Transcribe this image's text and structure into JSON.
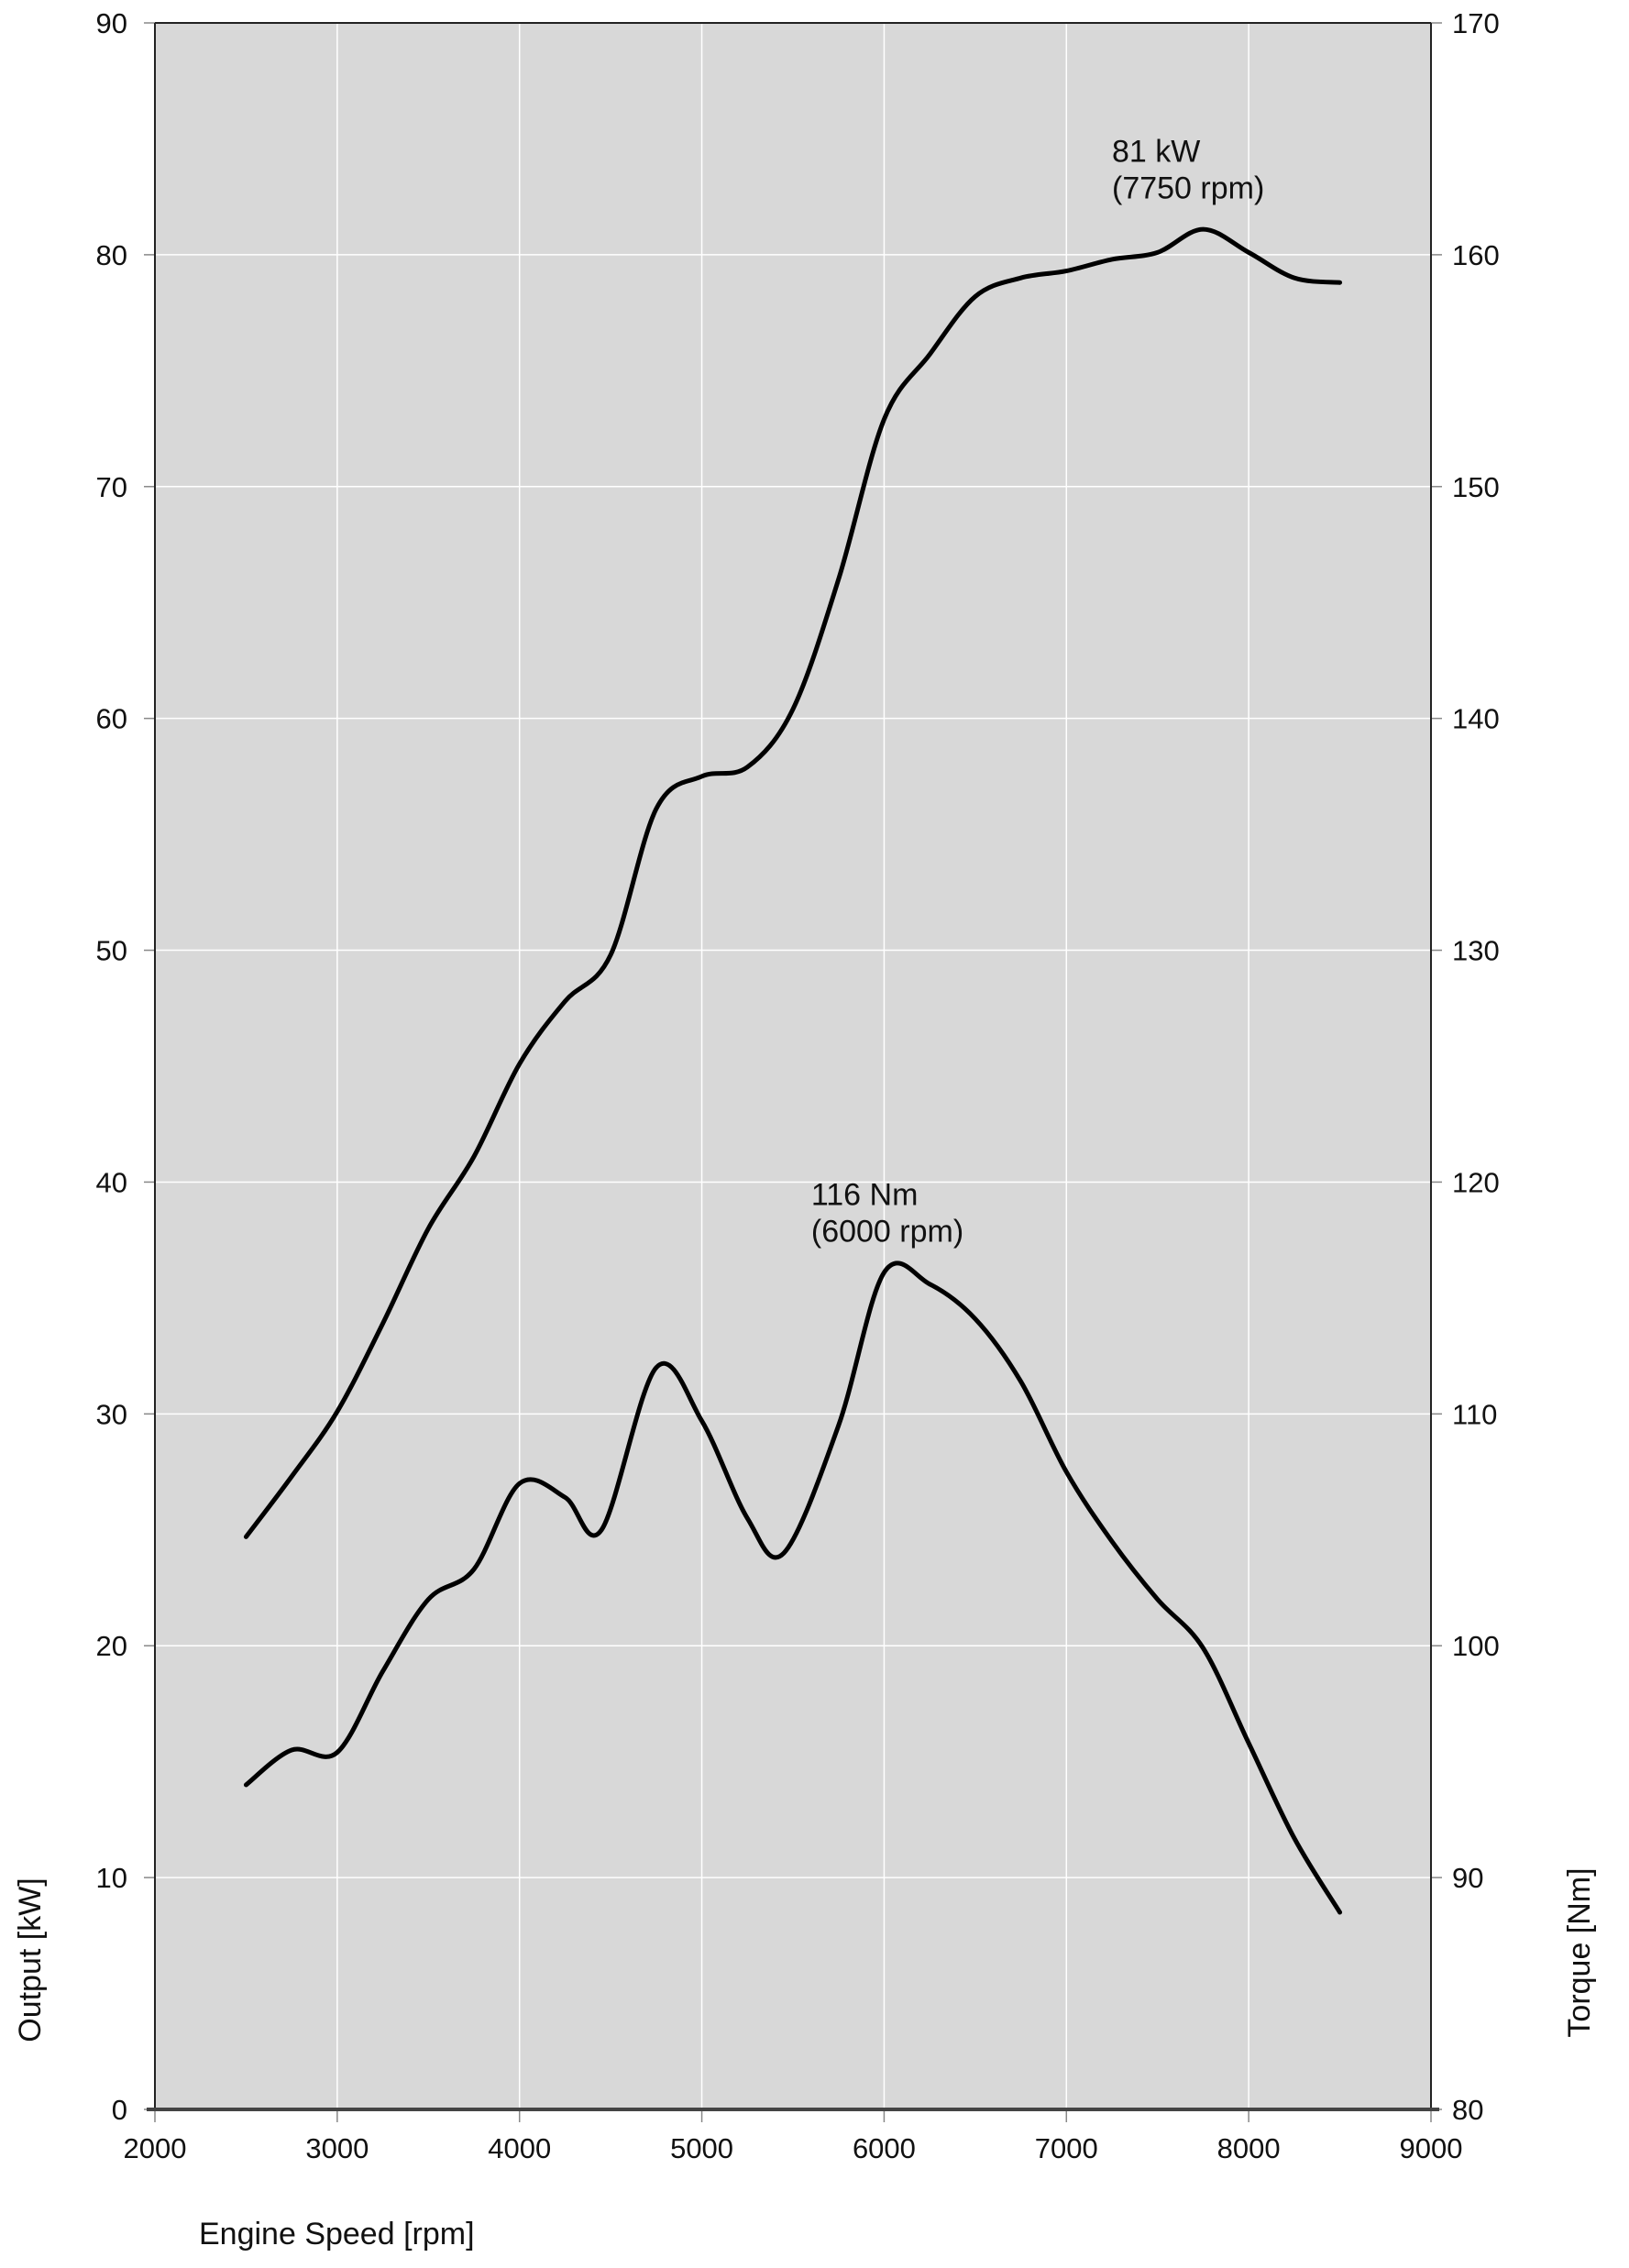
{
  "chart_data": {
    "type": "line",
    "xlabel": "Engine Speed [rpm]",
    "ylabel_left": "Output [kW]",
    "ylabel_right": "Torque [Nm]",
    "xlim": [
      2000,
      9000
    ],
    "ylim_left": [
      0,
      90
    ],
    "ylim_right": [
      80,
      170
    ],
    "grid": true,
    "xticks": [
      "2000",
      "3000",
      "4000",
      "5000",
      "6000",
      "7000",
      "8000",
      "9000"
    ],
    "yticks_left": [
      "0",
      "10",
      "20",
      "30",
      "40",
      "50",
      "60",
      "70",
      "80",
      "90"
    ],
    "yticks_right": [
      "80",
      "90",
      "100",
      "110",
      "120",
      "130",
      "140",
      "150",
      "160",
      "170"
    ],
    "series": [
      {
        "name": "Output",
        "axis": "left",
        "x": [
          2500,
          2750,
          3000,
          3250,
          3500,
          3750,
          4000,
          4250,
          4500,
          4750,
          5000,
          5250,
          5500,
          5750,
          6000,
          6250,
          6500,
          6750,
          7000,
          7250,
          7500,
          7750,
          8000,
          8250,
          8500
        ],
        "y": [
          24.7,
          27.3,
          30.1,
          33.9,
          38.0,
          41.1,
          45.1,
          47.8,
          49.8,
          56.1,
          57.5,
          57.9,
          60.4,
          66.0,
          72.9,
          75.7,
          78.2,
          79.0,
          79.3,
          79.8,
          80.1,
          81.1,
          80.1,
          79.0,
          78.8
        ]
      },
      {
        "name": "Torque",
        "axis": "right",
        "x": [
          2500,
          2750,
          3000,
          3250,
          3500,
          3750,
          4000,
          4250,
          4450,
          4750,
          5000,
          5250,
          5450,
          5750,
          6000,
          6250,
          6500,
          6750,
          7000,
          7250,
          7500,
          7750,
          8000,
          8250,
          8500
        ],
        "y": [
          94.0,
          95.5,
          95.4,
          98.9,
          102.0,
          103.3,
          107.0,
          106.4,
          105.0,
          112.0,
          109.7,
          105.5,
          104.0,
          109.5,
          116.1,
          115.6,
          114.1,
          111.4,
          107.5,
          104.5,
          102.0,
          99.9,
          95.8,
          91.7,
          88.5
        ]
      }
    ],
    "annotations": [
      {
        "line1": "81 kW",
        "line2": "(7750 rpm)",
        "x": 7250,
        "y_left": 84
      },
      {
        "line1": "116 Nm",
        "line2": "(6000 rpm)",
        "x": 5600,
        "y_left": 39
      }
    ]
  }
}
